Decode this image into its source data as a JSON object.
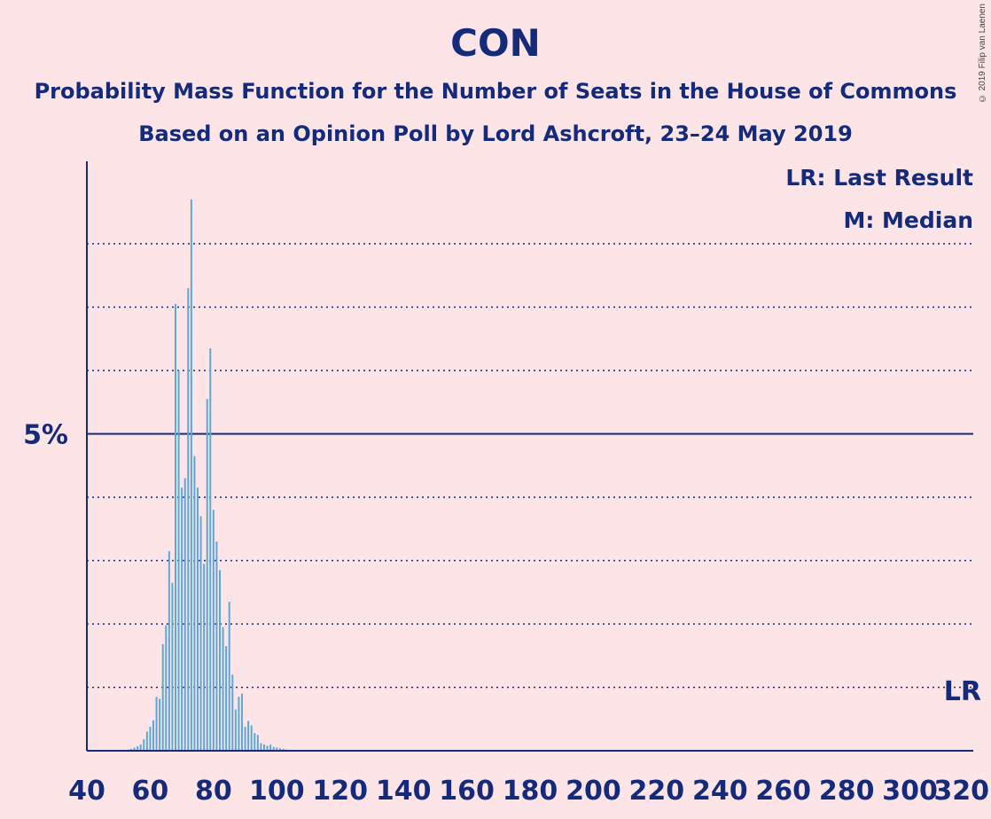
{
  "copyright": "© 2019 Filip van Laenen",
  "chart_data": {
    "type": "bar",
    "title": "CON",
    "subtitle": "Probability Mass Function for the Number of Seats in the House of Commons",
    "subtitle2": "Based on an Opinion Poll by Lord Ashcroft, 23–24 May 2019",
    "legend": [
      "LR: Last Result",
      "M: Median"
    ],
    "last_result_label": "LR",
    "last_result_seats": 317,
    "y_major_label": "5%",
    "y_major_value": 5,
    "gridlines": [
      1,
      2,
      3,
      4,
      6,
      7,
      8
    ],
    "xlim": [
      40,
      320
    ],
    "ylim": [
      0,
      9.3
    ],
    "x_ticks": [
      40,
      60,
      80,
      100,
      120,
      140,
      160,
      180,
      200,
      220,
      240,
      260,
      280,
      300,
      320
    ],
    "bar_color": "#5aa7d8",
    "x": [
      52,
      53,
      54,
      55,
      56,
      57,
      58,
      59,
      60,
      61,
      62,
      63,
      64,
      65,
      66,
      67,
      68,
      69,
      70,
      71,
      72,
      73,
      74,
      75,
      76,
      77,
      78,
      79,
      80,
      81,
      82,
      83,
      84,
      85,
      86,
      87,
      88,
      89,
      90,
      91,
      92,
      93,
      94,
      95,
      96,
      97,
      98,
      99,
      100,
      101,
      102,
      103,
      104,
      105
    ],
    "values": [
      0.01,
      0.02,
      0.03,
      0.05,
      0.07,
      0.1,
      0.18,
      0.3,
      0.38,
      0.48,
      0.85,
      0.82,
      1.68,
      1.98,
      3.15,
      2.65,
      7.05,
      6.0,
      4.15,
      4.3,
      7.3,
      8.7,
      4.65,
      4.15,
      3.7,
      2.95,
      5.55,
      6.35,
      3.8,
      3.3,
      2.85,
      1.95,
      1.65,
      2.35,
      1.2,
      0.65,
      0.85,
      0.9,
      0.38,
      0.47,
      0.4,
      0.28,
      0.25,
      0.12,
      0.1,
      0.08,
      0.1,
      0.06,
      0.05,
      0.04,
      0.03,
      0.02,
      0.01,
      0.01
    ]
  }
}
